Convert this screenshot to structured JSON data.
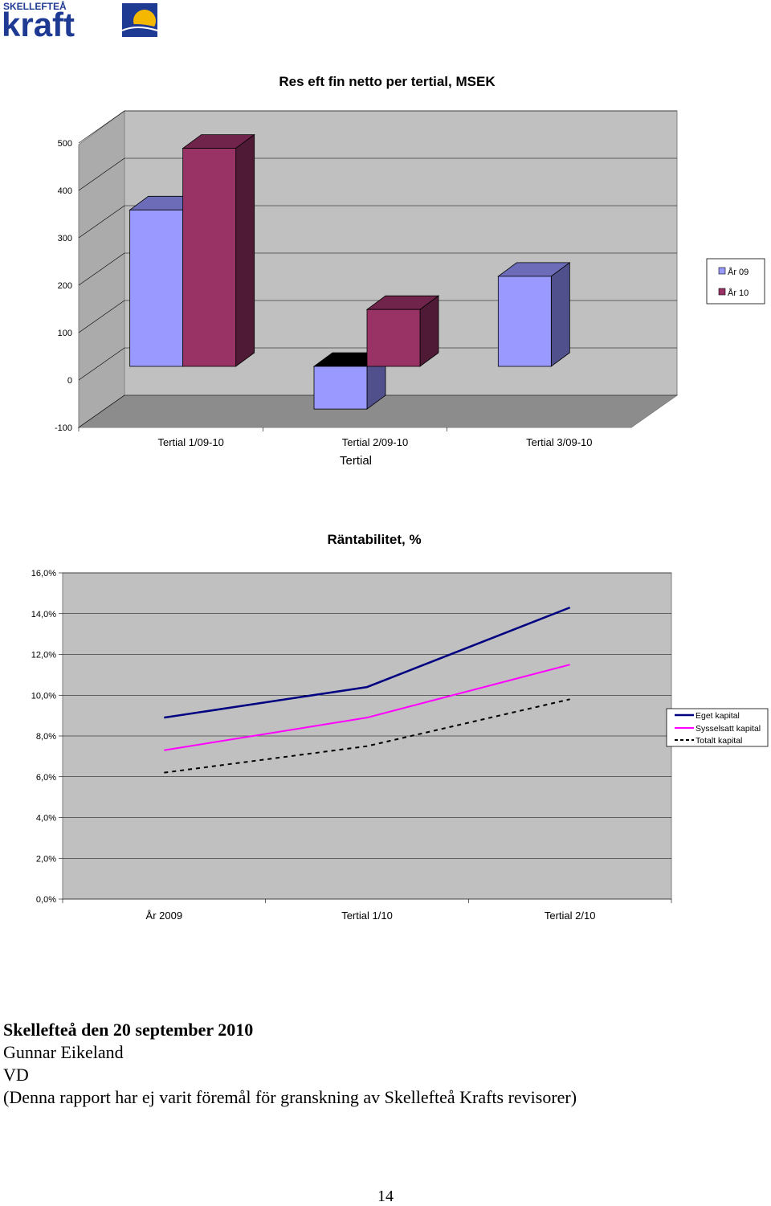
{
  "header": {
    "logo_top": "SKELLEFTEÅ",
    "logo_main": "kraft"
  },
  "chart_data": [
    {
      "type": "bar",
      "title": "Res eft fin netto per tertial, MSEK",
      "xlabel": "Tertial",
      "ylabel": "",
      "categories": [
        "Tertial 1/09-10",
        "Tertial 2/09-10",
        "Tertial 3/09-10"
      ],
      "series": [
        {
          "name": "År 09",
          "values": [
            330,
            -90,
            190
          ]
        },
        {
          "name": "År 10",
          "values": [
            460,
            120,
            null
          ]
        }
      ],
      "ylim": [
        -100,
        500
      ],
      "yticks": [
        -100,
        0,
        100,
        200,
        300,
        400,
        500
      ],
      "yticklabels": [
        "-100",
        "0",
        "100",
        "200",
        "300",
        "400",
        "500"
      ],
      "grid": true,
      "legend": "right",
      "colors": [
        "#9999ff",
        "#993366"
      ]
    },
    {
      "type": "line",
      "title": "Räntabilitet, %",
      "xlabel": "",
      "ylabel": "",
      "categories": [
        "År 2009",
        "Tertial 1/10",
        "Tertial 2/10"
      ],
      "series": [
        {
          "name": "Eget kapital",
          "values": [
            8.9,
            10.4,
            14.3
          ],
          "color": "#000080",
          "dash": false
        },
        {
          "name": "Sysselsatt kapital",
          "values": [
            7.3,
            8.9,
            11.5
          ],
          "color": "#ff00ff",
          "dash": false
        },
        {
          "name": "Totalt kapital",
          "values": [
            6.2,
            7.5,
            9.8
          ],
          "color": "#000000",
          "dash": true
        }
      ],
      "ylim": [
        0,
        16
      ],
      "yticks": [
        0,
        2,
        4,
        6,
        8,
        10,
        12,
        14,
        16
      ],
      "yticklabels": [
        "0,0%",
        "2,0%",
        "4,0%",
        "6,0%",
        "8,0%",
        "10,0%",
        "12,0%",
        "14,0%",
        "16,0%"
      ],
      "grid": true,
      "legend": "right"
    }
  ],
  "signature": {
    "place_date": "Skellefteå den 20 september 2010",
    "name": "Gunnar Eikeland",
    "role": "VD",
    "note": "(Denna rapport har ej varit föremål för granskning av Skellefteå Krafts revisorer)"
  },
  "page": {
    "number": "14"
  }
}
